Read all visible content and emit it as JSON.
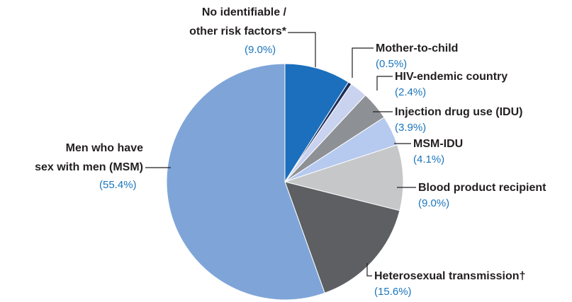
{
  "chart_data": {
    "type": "pie",
    "categories": [
      "No identifiable /\nother risk factors*",
      "Mother-to-child",
      "HIV-endemic country",
      "Injection drug use (IDU)",
      "MSM-IDU",
      "Blood product recipient",
      "Heterosexual transmission†",
      "Men who have\nsex with men (MSM)"
    ],
    "values": [
      9.0,
      0.5,
      2.4,
      3.9,
      4.1,
      9.0,
      15.6,
      55.4
    ],
    "value_labels": [
      "(9.0%)",
      "(0.5%)",
      "(2.4%)",
      "(3.9%)",
      "(4.1%)",
      "(9.0%)",
      "(15.6%)",
      "(55.4%)"
    ],
    "colors": [
      "#1b6fbd",
      "#1d2f5a",
      "#c9d2ee",
      "#8d9095",
      "#b6c9ee",
      "#c6c7c9",
      "#5d5f63",
      "#7fa5d8"
    ]
  }
}
